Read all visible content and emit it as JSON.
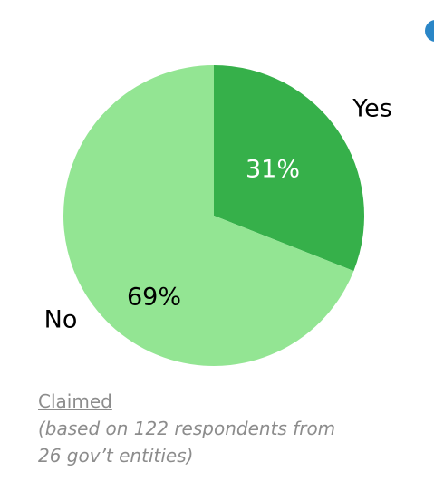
{
  "chart_data": {
    "type": "pie",
    "categories": [
      "Yes",
      "No"
    ],
    "values": [
      31,
      69
    ],
    "value_labels": [
      "31%",
      "69%"
    ],
    "colors": [
      "#36b04a",
      "#93e593"
    ],
    "title": "",
    "start": "12 o'clock, clockwise"
  },
  "caption": {
    "title": "Claimed",
    "note": "(based on 122 respondents from\n26 gov’t entities)"
  },
  "colors": {
    "caption_text": "#8c8c8c",
    "label_text": "#000000",
    "slice_label_yes": "#ffffff",
    "corner_mark": "#2a86c7"
  }
}
